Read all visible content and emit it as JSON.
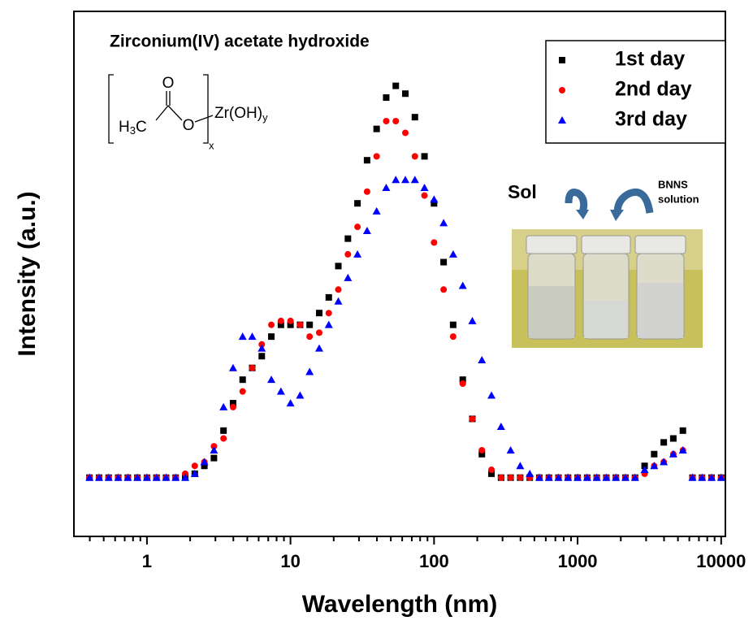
{
  "chart_data": {
    "type": "scatter",
    "x_label": "Wavelength (nm)",
    "y_label": "Intensity (a.u.)",
    "log_x": true,
    "xlim": [
      0.31,
      10700
    ],
    "ylim": [
      -0.15,
      1.19
    ],
    "xticks": [
      1,
      10,
      100,
      1000,
      10000
    ],
    "xminorticks": [
      0.4,
      0.5,
      0.6,
      0.7,
      0.8,
      0.9,
      2,
      3,
      4,
      5,
      6,
      7,
      8,
      9,
      20,
      30,
      40,
      50,
      60,
      70,
      80,
      90,
      200,
      300,
      400,
      500,
      600,
      700,
      800,
      900,
      2000,
      3000,
      4000,
      5000,
      6000,
      7000,
      8000,
      9000
    ],
    "x": [
      0.398,
      0.464,
      0.541,
      0.631,
      0.736,
      0.858,
      1,
      1.166,
      1.359,
      1.585,
      1.848,
      2.154,
      2.512,
      2.929,
      3.415,
      3.981,
      4.642,
      5.412,
      6.31,
      7.356,
      8.577,
      10,
      11.66,
      13.59,
      15.85,
      18.48,
      21.54,
      25.12,
      29.29,
      34.15,
      39.81,
      46.42,
      54.12,
      63.1,
      73.56,
      85.77,
      100,
      116.6,
      135.9,
      158.5,
      184.8,
      215.4,
      251.2,
      292.9,
      341.5,
      398.1,
      464.2,
      541.2,
      631,
      735.6,
      857.7,
      1000,
      1166,
      1359,
      1585,
      1848,
      2154,
      2512,
      2929,
      3415,
      3981,
      4642,
      5412,
      6310,
      7356,
      8577,
      10000
    ],
    "series": [
      {
        "name": "1st day",
        "color": "#000000",
        "marker": "square",
        "values": [
          0,
          0,
          0,
          0,
          0,
          0,
          0,
          0,
          0,
          0,
          0,
          0.01,
          0.03,
          0.05,
          0.12,
          0.19,
          0.25,
          0.28,
          0.31,
          0.36,
          0.39,
          0.39,
          0.39,
          0.39,
          0.42,
          0.46,
          0.54,
          0.61,
          0.7,
          0.81,
          0.89,
          0.97,
          1.0,
          0.98,
          0.92,
          0.82,
          0.7,
          0.55,
          0.39,
          0.25,
          0.15,
          0.06,
          0.01,
          0,
          0,
          0,
          0,
          0,
          0,
          0,
          0,
          0,
          0,
          0,
          0,
          0,
          0,
          0,
          0.03,
          0.06,
          0.09,
          0.1,
          0.12,
          0,
          0,
          0,
          0
        ]
      },
      {
        "name": "2nd day",
        "color": "#ff0000",
        "marker": "circle",
        "values": [
          0,
          0,
          0,
          0,
          0,
          0,
          0,
          0,
          0,
          0,
          0.01,
          0.03,
          0.04,
          0.08,
          0.1,
          0.18,
          0.22,
          0.28,
          0.34,
          0.39,
          0.4,
          0.4,
          0.39,
          0.36,
          0.37,
          0.42,
          0.48,
          0.57,
          0.64,
          0.73,
          0.82,
          0.91,
          0.91,
          0.88,
          0.82,
          0.72,
          0.6,
          0.48,
          0.36,
          0.24,
          0.15,
          0.07,
          0.02,
          0.0,
          0,
          0,
          0,
          0,
          0,
          0,
          0,
          0,
          0,
          0,
          0,
          0,
          0,
          0,
          0.01,
          0.03,
          0.04,
          0.06,
          0.07,
          0,
          0,
          0,
          0
        ]
      },
      {
        "name": "3rd day",
        "color": "#0000ff",
        "marker": "triangle",
        "values": [
          0,
          0,
          0,
          0,
          0,
          0,
          0,
          0,
          0,
          0,
          0,
          0.01,
          0.04,
          0.07,
          0.18,
          0.28,
          0.36,
          0.36,
          0.33,
          0.25,
          0.22,
          0.19,
          0.21,
          0.27,
          0.33,
          0.39,
          0.45,
          0.51,
          0.57,
          0.63,
          0.68,
          0.74,
          0.76,
          0.76,
          0.76,
          0.74,
          0.71,
          0.65,
          0.57,
          0.49,
          0.4,
          0.3,
          0.21,
          0.13,
          0.07,
          0.03,
          0.01,
          0,
          0,
          0,
          0,
          0,
          0,
          0,
          0,
          0,
          0,
          0,
          0.02,
          0.03,
          0.04,
          0.06,
          0.07,
          0,
          0,
          0,
          0
        ]
      }
    ],
    "legend": "upper right",
    "annotations": {
      "compound": "Zirconium(IV) acetate hydroxide",
      "carbonyl_o": "O",
      "methyl_h": "H",
      "methyl_sub": "3",
      "methyl_c": "C",
      "ester_o": "O",
      "zr": "Zr(OH)",
      "zr_sub": "y",
      "repeat_sub": "x",
      "sol": "Sol",
      "bnns_1": "BNNS",
      "bnns_2": "solution"
    }
  }
}
